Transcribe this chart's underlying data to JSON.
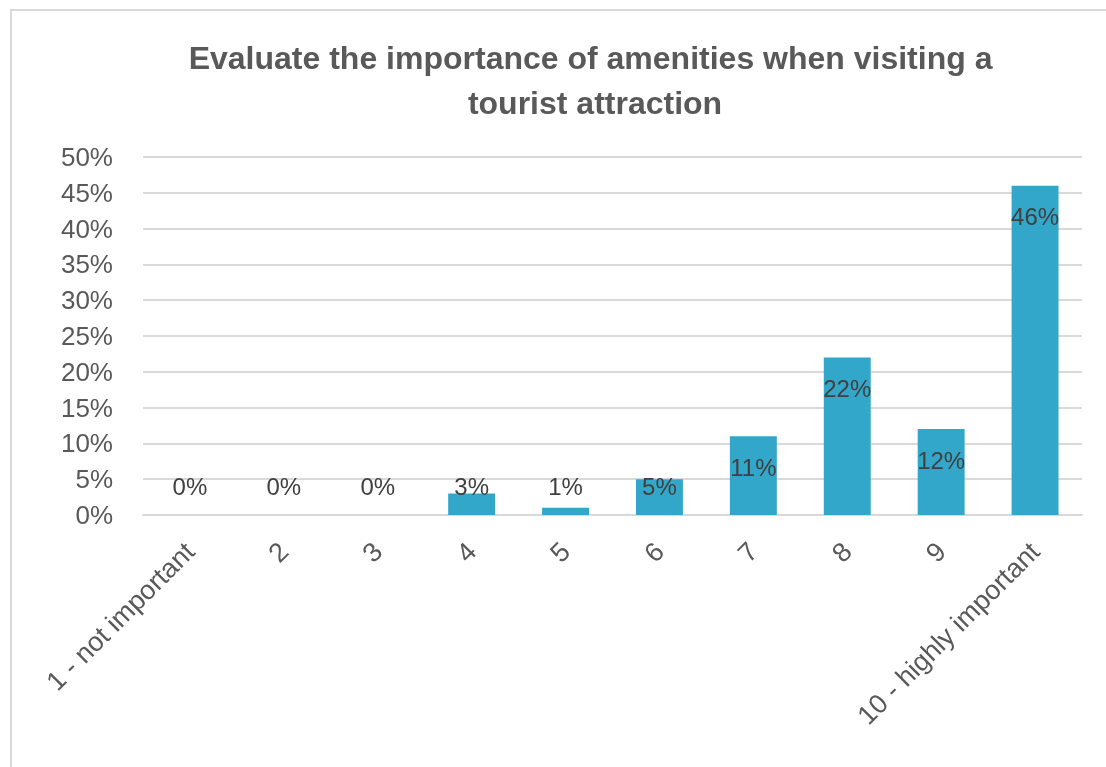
{
  "chart_data": {
    "type": "bar",
    "title": "Evaluate the importance of amenities when visiting a tourist attraction",
    "categories": [
      "1 - not important",
      "2",
      "3",
      "4",
      "5",
      "6",
      "7",
      "8",
      "9",
      "10 - highly important"
    ],
    "values": [
      0,
      0,
      0,
      3,
      1,
      5,
      11,
      22,
      12,
      46
    ],
    "value_labels": [
      "0%",
      "0%",
      "0%",
      "3%",
      "1%",
      "5%",
      "11%",
      "22%",
      "12%",
      "46%"
    ],
    "color": "#33a7ca",
    "ylim": [
      0,
      50
    ],
    "yticks": [
      {
        "value": 0,
        "label": "0%"
      },
      {
        "value": 5,
        "label": "5%"
      },
      {
        "value": 10,
        "label": "10%"
      },
      {
        "value": 15,
        "label": "15%"
      },
      {
        "value": 20,
        "label": "20%"
      },
      {
        "value": 25,
        "label": "25%"
      },
      {
        "value": 30,
        "label": "30%"
      },
      {
        "value": 35,
        "label": "35%"
      },
      {
        "value": 40,
        "label": "40%"
      },
      {
        "value": 45,
        "label": "45%"
      },
      {
        "value": 50,
        "label": "50%"
      }
    ],
    "grid": "y"
  }
}
